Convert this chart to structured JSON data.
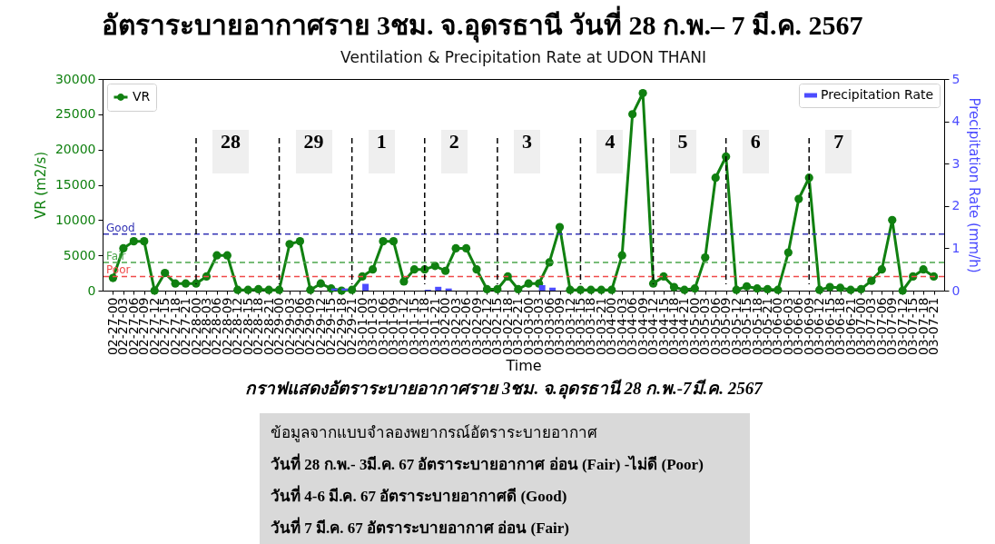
{
  "chart_data": {
    "type": "line",
    "title": "อัตราระบายอากาศราย 3ชม. จ.อุดรธานี วันที่ 28 ก.พ.– 7 มี.ค. 2567",
    "subtitle": "Ventilation & Precipitation Rate at UDON THANI",
    "xlabel": "Time",
    "ylabel": "VR (m2/s)",
    "y2label": "Precipitation Rate (mm/h)",
    "categories": [
      "02-27-00",
      "02-27-03",
      "02-27-06",
      "02-27-09",
      "02-27-12",
      "02-27-15",
      "02-27-18",
      "02-27-21",
      "02-28-00",
      "02-28-03",
      "02-28-06",
      "02-28-09",
      "02-28-12",
      "02-28-15",
      "02-28-18",
      "02-28-21",
      "02-29-00",
      "02-29-03",
      "02-29-06",
      "02-29-09",
      "02-29-12",
      "02-29-15",
      "02-29-18",
      "02-29-21",
      "03-01-00",
      "03-01-03",
      "03-01-06",
      "03-01-09",
      "03-01-12",
      "03-01-15",
      "03-01-18",
      "03-01-21",
      "03-02-00",
      "03-02-03",
      "03-02-06",
      "03-02-09",
      "03-02-12",
      "03-02-15",
      "03-02-18",
      "03-02-21",
      "03-03-00",
      "03-03-03",
      "03-03-06",
      "03-03-09",
      "03-03-12",
      "03-03-15",
      "03-03-18",
      "03-03-21",
      "03-04-00",
      "03-04-03",
      "03-04-06",
      "03-04-09",
      "03-04-12",
      "03-04-15",
      "03-04-18",
      "03-04-21",
      "03-05-00",
      "03-05-03",
      "03-05-06",
      "03-05-09",
      "03-05-12",
      "03-05-15",
      "03-05-18",
      "03-05-21",
      "03-06-00",
      "03-06-03",
      "03-06-06",
      "03-06-09",
      "03-06-12",
      "03-06-15",
      "03-06-18",
      "03-06-21",
      "03-07-00",
      "03-07-03",
      "03-07-06",
      "03-07-09",
      "03-07-12",
      "03-07-15",
      "03-07-18",
      "03-07-21"
    ],
    "series": [
      {
        "name": "VR",
        "color": "#108010",
        "values": [
          1800,
          6000,
          7000,
          7000,
          0,
          2500,
          1000,
          1000,
          1000,
          2000,
          5000,
          5000,
          100,
          100,
          200,
          100,
          100,
          6600,
          7000,
          100,
          1000,
          300,
          0,
          100,
          2000,
          3000,
          7000,
          7000,
          1300,
          3000,
          3000,
          3500,
          2800,
          6000,
          6000,
          3000,
          200,
          200,
          2000,
          200,
          1000,
          1000,
          4000,
          9000,
          100,
          100,
          100,
          100,
          100,
          5000,
          25000,
          28000,
          1000,
          2000,
          500,
          100,
          300,
          4700,
          16000,
          19000,
          100,
          600,
          300,
          200,
          100,
          5400,
          13000,
          16000,
          100,
          500,
          400,
          100,
          200,
          1400,
          3000,
          10000,
          0,
          2000,
          3000,
          2000
        ]
      },
      {
        "name": "Precipitation Rate",
        "type": "bar",
        "axis": "y2",
        "color": "#4c4cff",
        "values": [
          null,
          null,
          null,
          null,
          null,
          null,
          null,
          null,
          null,
          null,
          null,
          null,
          null,
          null,
          null,
          null,
          null,
          null,
          null,
          null,
          null,
          0.05,
          0.05,
          null,
          0.16,
          null,
          null,
          null,
          null,
          null,
          0.02,
          0.09,
          0.05,
          null,
          null,
          null,
          null,
          null,
          null,
          null,
          null,
          0.13,
          0.07,
          null,
          null,
          null,
          null,
          null,
          null,
          null,
          null,
          null,
          null,
          null,
          null,
          null,
          null,
          null,
          null,
          null,
          null,
          null,
          null,
          null,
          null,
          null,
          null,
          null,
          null,
          null,
          null,
          null,
          null,
          null,
          null,
          null,
          null,
          null,
          null,
          null
        ]
      }
    ],
    "ylim": [
      0,
      30000
    ],
    "yticks": [
      0,
      5000,
      10000,
      15000,
      20000,
      25000,
      30000
    ],
    "y2lim": [
      0,
      5
    ],
    "y2ticks": [
      0,
      1,
      2,
      3,
      4,
      5
    ],
    "ref_lines": [
      {
        "axis": "y",
        "value": 8000,
        "label": "Good",
        "color": "#3535b5",
        "line_style": "dashed"
      },
      {
        "axis": "y",
        "value": 4000,
        "label": "Fair",
        "color": "#4ca64c",
        "line_style": "dashed"
      },
      {
        "axis": "y",
        "value": 2000,
        "label": "Poor",
        "color": "#f04a4a",
        "line_style": "dashed"
      },
      {
        "axis": "x",
        "value": "02-28-00",
        "label": "28",
        "color": "#000000",
        "line_style": "dashed"
      },
      {
        "axis": "x",
        "value": "02-29-00",
        "label": "29",
        "color": "#000000",
        "line_style": "dashed"
      },
      {
        "axis": "x",
        "value": "02-29-21",
        "label": "1",
        "color": "#000000",
        "line_style": "dashed"
      },
      {
        "axis": "x",
        "value": "03-01-18",
        "label": "2",
        "color": "#000000",
        "line_style": "dashed"
      },
      {
        "axis": "x",
        "value": "03-02-15",
        "label": "3",
        "color": "#000000",
        "line_style": "dashed"
      },
      {
        "axis": "x",
        "value": "03-03-15",
        "label": "4",
        "color": "#000000",
        "line_style": "dashed"
      },
      {
        "axis": "x",
        "value": "03-04-12",
        "label": "5",
        "color": "#000000",
        "line_style": "dashed"
      },
      {
        "axis": "x",
        "value": "03-05-09",
        "label": "6",
        "color": "#000000",
        "line_style": "dashed"
      },
      {
        "axis": "x",
        "value": "03-06-09",
        "label": "7",
        "color": "#000000",
        "line_style": "dashed"
      }
    ],
    "annotations": [
      "กราฟแสดงอัตราระบายอากาศราย 3ชม. จ.อุดรธานี 28 ก.พ.-7มี.ค. 2567",
      "ข้อมูลจากแบบจำลองพยากรณ์อัตราระบายอากาศ",
      "วันที่ 28 ก.พ.- 3มี.ค. 67 อัตราระบายอากาศ อ่อน (Fair) -ไม่ดี (Poor)",
      "วันที่ 4-6 มี.ค. 67 อัตราระบายอากาศดี (Good)",
      "วันที่ 7 มี.ค. 67 อัตราระบายอากาศ อ่อน (Fair)"
    ],
    "legend": "top",
    "grid": false,
    "marker": "circle",
    "line_style": "solid"
  }
}
